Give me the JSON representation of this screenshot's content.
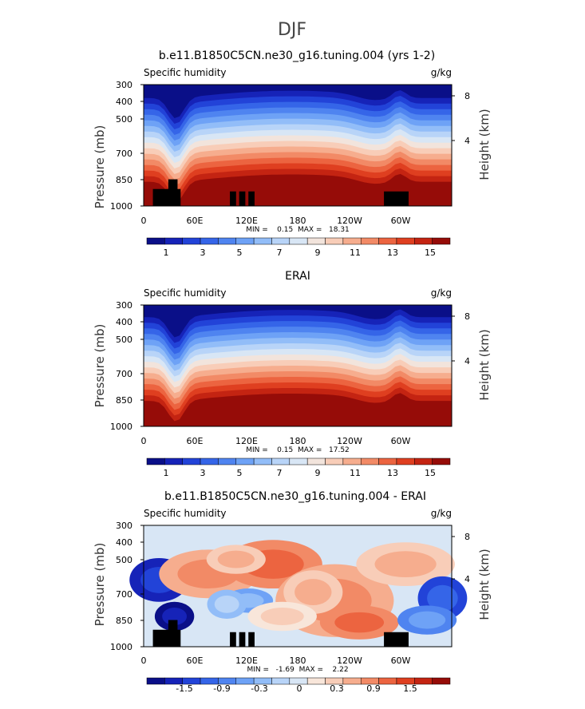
{
  "figure_title": "DJF",
  "colors": {
    "seq": [
      "#0a0f88",
      "#1623b8",
      "#2243d8",
      "#3565e8",
      "#4f84f0",
      "#6ea2f6",
      "#92bdf8",
      "#b8d4f8",
      "#d8e6f5",
      "#f2e4dc",
      "#f8cdb8",
      "#f6ad8e",
      "#f28a66",
      "#ec6440",
      "#df3f20",
      "#c42412",
      "#960c08"
    ],
    "div": [
      "#0a0f88",
      "#1623b8",
      "#2243d8",
      "#3565e8",
      "#4f84f0",
      "#6ea2f6",
      "#92bdf8",
      "#b8d4f8",
      "#d8e6f5",
      "#f8e6da",
      "#f8cdb8",
      "#f6ad8e",
      "#f28a66",
      "#ec6440",
      "#df3f20",
      "#c42412",
      "#960c08"
    ]
  },
  "chart_data": [
    {
      "type": "heatmap",
      "title": "b.e11.B1850C5CN.ne30_g16.tuning.004 (yrs 1-2)",
      "left_label": "Specific humidity",
      "right_label": "g/kg",
      "ylabel": "Pressure (mb)",
      "y2label": "Height (km)",
      "yticks": [
        "300",
        "400",
        "500",
        "700",
        "850",
        "1000"
      ],
      "y2ticks": [
        "8",
        "4"
      ],
      "xticks": [
        "0",
        "60E",
        "120E",
        "180",
        "120W",
        "60W"
      ],
      "stats_text": "MIN =    0.15  MAX =   18.31",
      "colorbar_labels": [
        "1",
        "3",
        "5",
        "7",
        "9",
        "11",
        "13",
        "15"
      ],
      "palette": "seq",
      "levels": [
        0,
        1,
        2,
        3,
        4,
        5,
        6,
        7,
        8,
        9,
        10,
        11,
        12,
        13,
        14,
        15,
        16
      ],
      "min": 0.15,
      "max": 18.31,
      "show_topography": true
    },
    {
      "type": "heatmap",
      "title": "ERAI",
      "left_label": "Specific humidity",
      "right_label": "g/kg",
      "ylabel": "Pressure (mb)",
      "y2label": "Height (km)",
      "yticks": [
        "300",
        "400",
        "500",
        "700",
        "850",
        "1000"
      ],
      "y2ticks": [
        "8",
        "4"
      ],
      "xticks": [
        "0",
        "60E",
        "120E",
        "180",
        "120W",
        "60W"
      ],
      "stats_text": "MIN =    0.15  MAX =   17.52",
      "colorbar_labels": [
        "1",
        "3",
        "5",
        "7",
        "9",
        "11",
        "13",
        "15"
      ],
      "palette": "seq",
      "levels": [
        0,
        1,
        2,
        3,
        4,
        5,
        6,
        7,
        8,
        9,
        10,
        11,
        12,
        13,
        14,
        15,
        16
      ],
      "min": 0.15,
      "max": 17.52,
      "show_topography": false
    },
    {
      "type": "heatmap",
      "title": "b.e11.B1850C5CN.ne30_g16.tuning.004 - ERAI",
      "left_label": "Specific humidity",
      "right_label": "g/kg",
      "ylabel": "Pressure (mb)",
      "y2label": "Height (km)",
      "yticks": [
        "300",
        "400",
        "500",
        "700",
        "850",
        "1000"
      ],
      "y2ticks": [
        "8",
        "4"
      ],
      "xticks": [
        "0",
        "60E",
        "120E",
        "180",
        "120W",
        "60W"
      ],
      "stats_text": "MIN =   -1.69  MAX =    2.22",
      "colorbar_labels": [
        "-1.5",
        "-0.9",
        "-0.3",
        "0",
        "0.3",
        "0.9",
        "1.5"
      ],
      "palette": "div",
      "levels": [
        -2.0,
        -1.5,
        -1.2,
        -0.9,
        -0.6,
        -0.3,
        -0.15,
        0,
        0.15,
        0.3,
        0.6,
        0.9,
        1.2,
        1.5,
        1.8,
        2.1,
        2.4
      ],
      "min": -1.69,
      "max": 2.22,
      "show_topography": true
    }
  ]
}
